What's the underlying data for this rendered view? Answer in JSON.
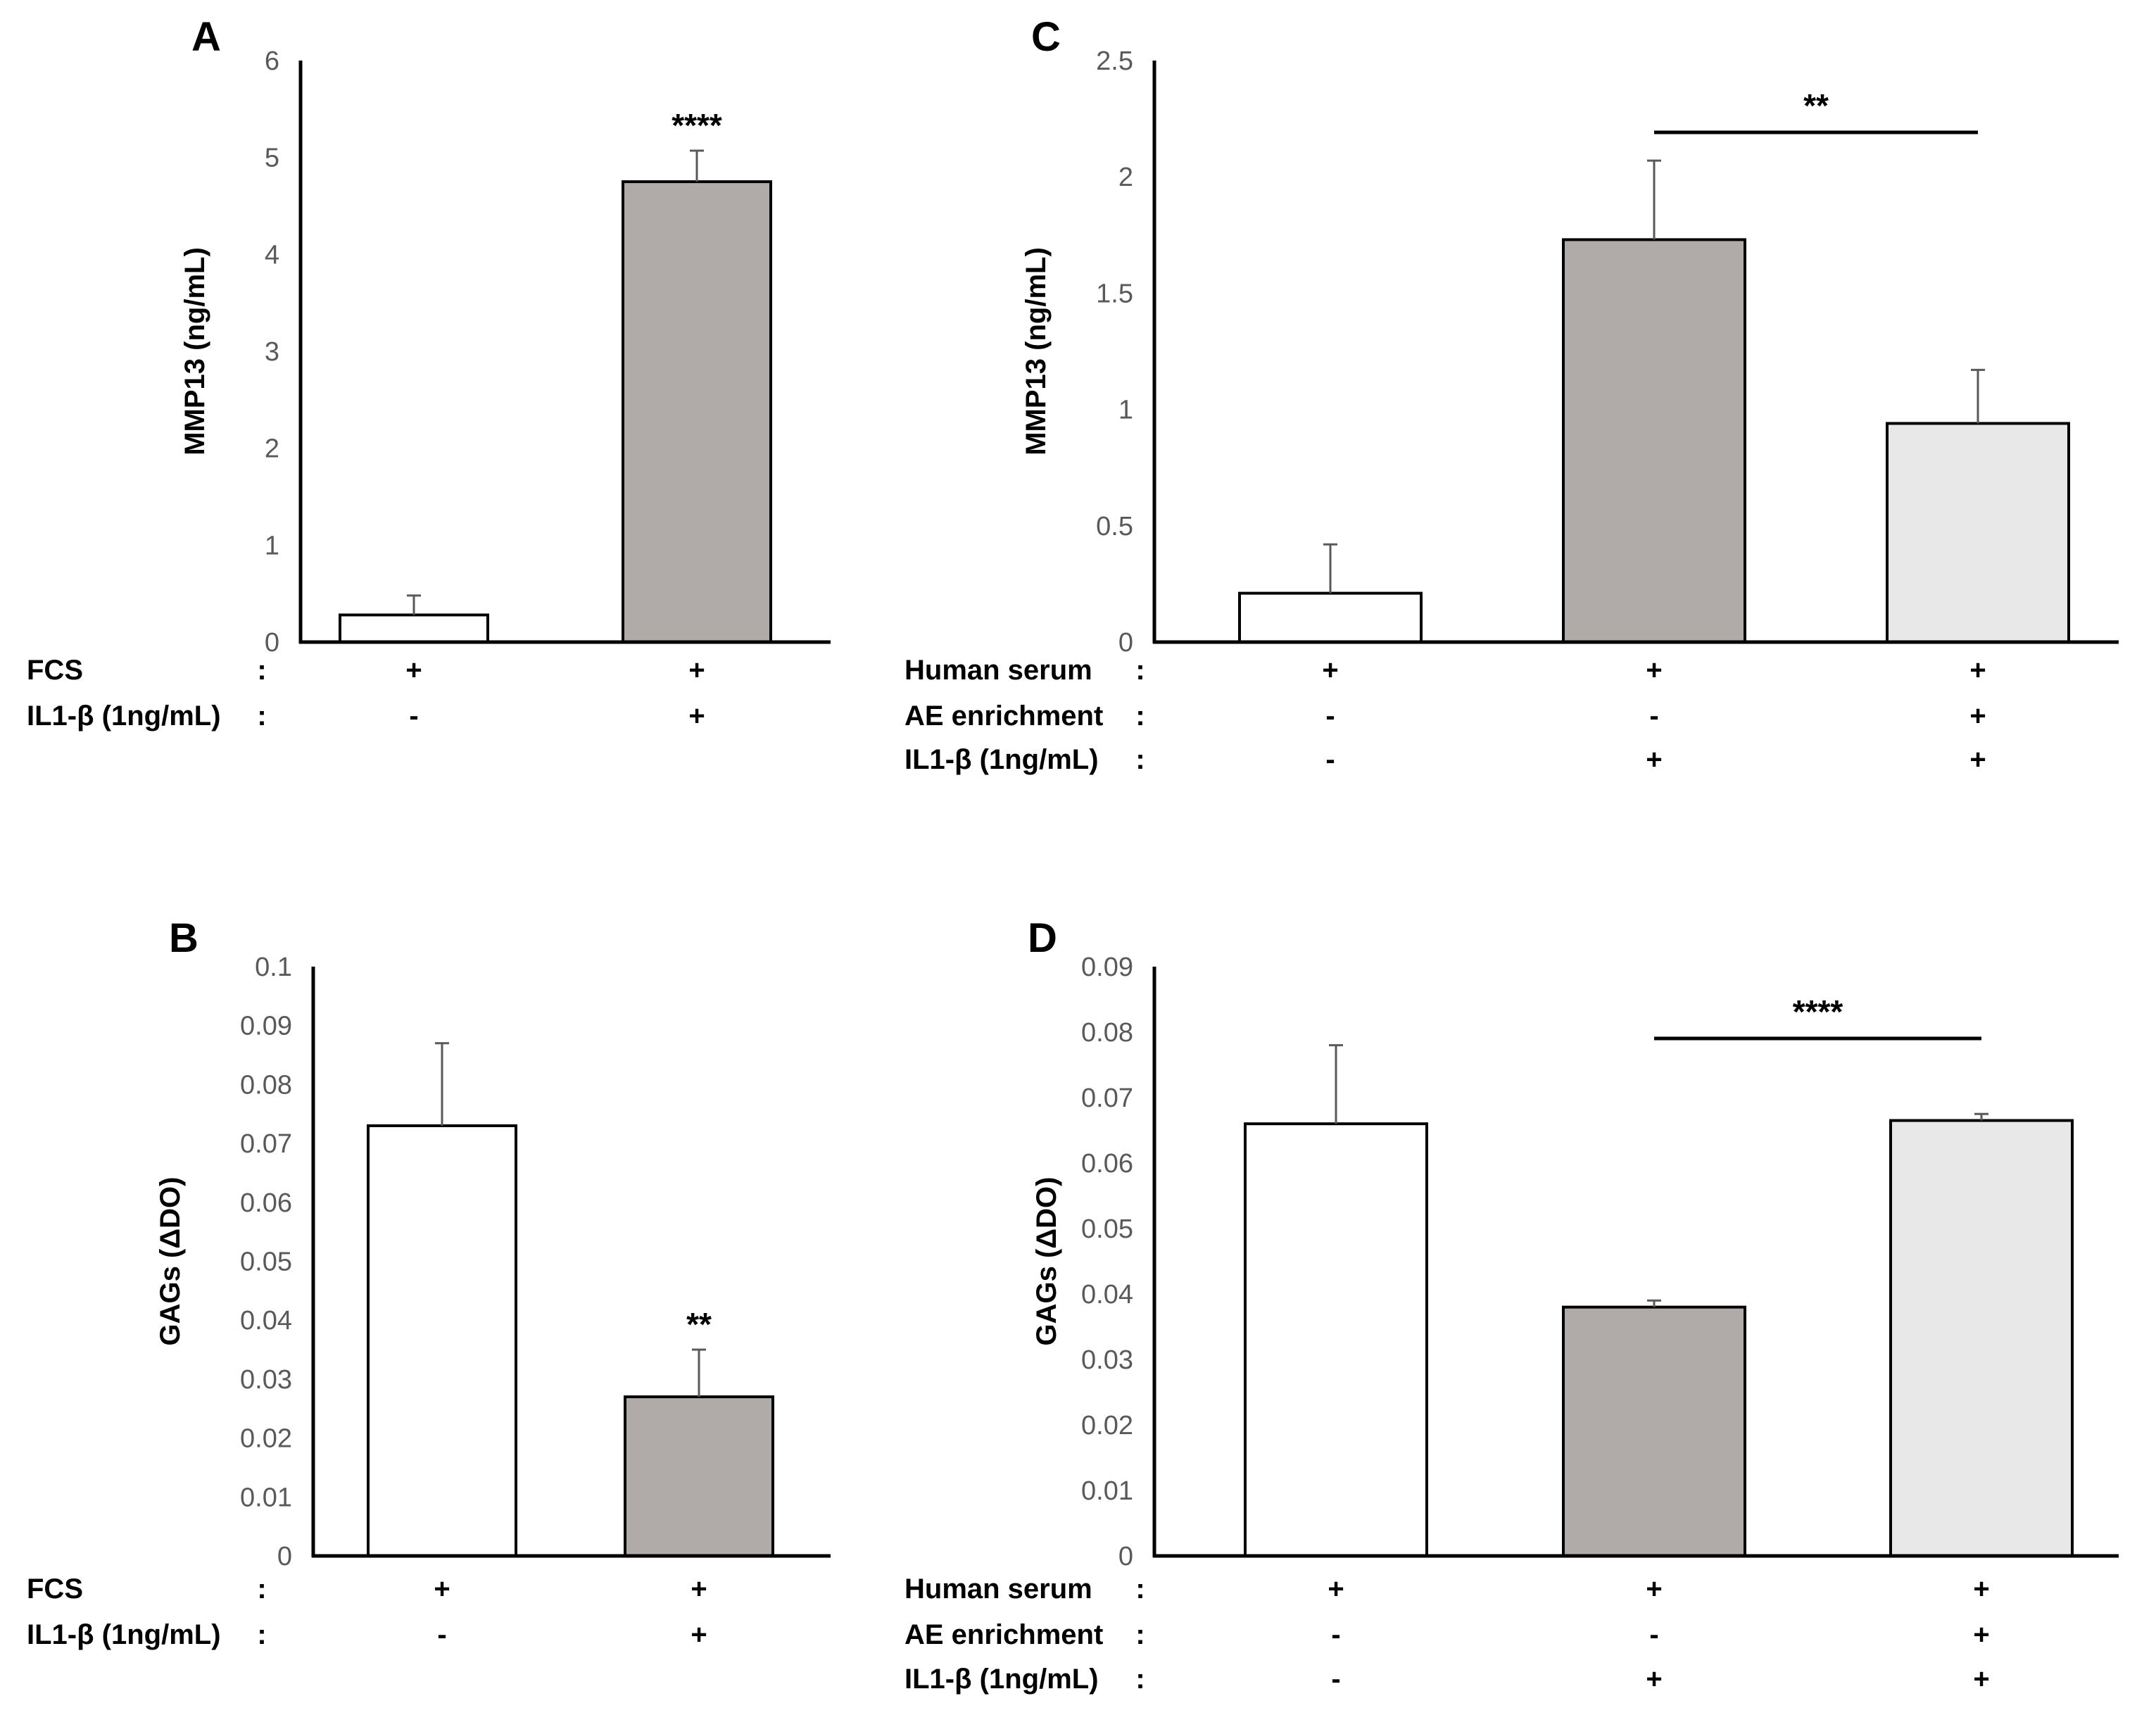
{
  "chart_data": [
    {
      "type": "bar",
      "panel": "A",
      "ylabel": "MMP13 (ng/mL)",
      "ylim": [
        0,
        6
      ],
      "yticks": [
        "0",
        "1",
        "2",
        "3",
        "4",
        "5",
        "6"
      ],
      "values": [
        0.28,
        4.75
      ],
      "errors": [
        0.2,
        0.32
      ],
      "colors": [
        "#ffffff",
        "#b0aba8"
      ],
      "significance": [
        {
          "label": "****",
          "bar": 1
        }
      ],
      "conditions": [
        {
          "label": "FCS",
          "sep": ":",
          "marks": [
            "+",
            "+"
          ]
        },
        {
          "label": "IL1-β (1ng/mL)",
          "sep": ":",
          "marks": [
            "-",
            "+"
          ]
        }
      ]
    },
    {
      "type": "bar",
      "panel": "C",
      "ylabel": "MMP13 (ng/mL)",
      "ylim": [
        0,
        2.5
      ],
      "yticks": [
        "0",
        "0.5",
        "1",
        "1.5",
        "2",
        "2.5"
      ],
      "values": [
        0.21,
        1.73,
        0.94
      ],
      "errors": [
        0.21,
        0.34,
        0.23
      ],
      "colors": [
        "#ffffff",
        "#b0aba8",
        "#e8e8e8"
      ],
      "significance": [
        {
          "label": "**",
          "from": 1,
          "to": 2
        }
      ],
      "conditions": [
        {
          "label": "Human serum",
          "sep": ":",
          "marks": [
            "+",
            "+",
            "+"
          ]
        },
        {
          "label": "AE enrichment",
          "sep": ":",
          "marks": [
            "-",
            "-",
            "+"
          ]
        },
        {
          "label": "IL1-β (1ng/mL)",
          "sep": ":",
          "marks": [
            "-",
            "+",
            "+"
          ]
        }
      ]
    },
    {
      "type": "bar",
      "panel": "B",
      "ylabel": "GAGs (ΔDO)",
      "ylim": [
        0,
        0.1
      ],
      "yticks": [
        "0",
        "0.01",
        "0.02",
        "0.03",
        "0.04",
        "0.05",
        "0.06",
        "0.07",
        "0.08",
        "0.09",
        "0.1"
      ],
      "values": [
        0.073,
        0.027
      ],
      "errors": [
        0.014,
        0.008
      ],
      "colors": [
        "#ffffff",
        "#b0aba8"
      ],
      "significance": [
        {
          "label": "**",
          "bar": 1
        }
      ],
      "conditions": [
        {
          "label": "FCS",
          "sep": ":",
          "marks": [
            "+",
            "+"
          ]
        },
        {
          "label": "IL1-β (1ng/mL)",
          "sep": ":",
          "marks": [
            "-",
            "+"
          ]
        }
      ]
    },
    {
      "type": "bar",
      "panel": "D",
      "ylabel": "GAGs (ΔDO)",
      "ylim": [
        0,
        0.09
      ],
      "yticks": [
        "0",
        "0.01",
        "0.02",
        "0.03",
        "0.04",
        "0.05",
        "0.06",
        "0.07",
        "0.08",
        "0.09"
      ],
      "values": [
        0.066,
        0.038,
        0.0665
      ],
      "errors": [
        0.012,
        0.001,
        0.001
      ],
      "colors": [
        "#ffffff",
        "#b0aba8",
        "#e8e8e8"
      ],
      "significance": [
        {
          "label": "****",
          "from": 1,
          "to": 2
        }
      ],
      "conditions": [
        {
          "label": "Human serum",
          "sep": ":",
          "marks": [
            "+",
            "+",
            "+"
          ]
        },
        {
          "label": "AE enrichment",
          "sep": ":",
          "marks": [
            "-",
            "-",
            "+"
          ]
        },
        {
          "label": "IL1-β (1ng/mL)",
          "sep": ":",
          "marks": [
            "-",
            "+",
            "+"
          ]
        }
      ]
    }
  ]
}
